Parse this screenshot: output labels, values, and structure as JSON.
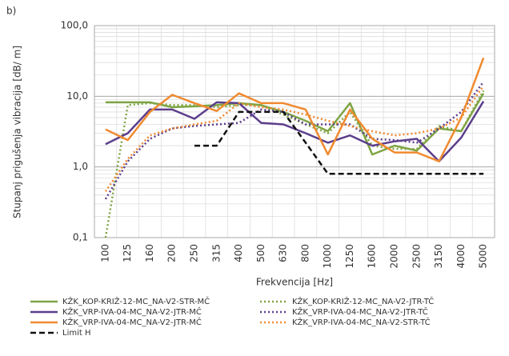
{
  "chart_data": {
    "type": "line",
    "panel_label": "b)",
    "y_label": "Stupanj prigušenja vibracija [dB/ m]",
    "x_label": "Frekvencija [Hz]",
    "categories": [
      "100",
      "125",
      "160",
      "200",
      "250",
      "315",
      "400",
      "500",
      "630",
      "800",
      "1000",
      "1250",
      "1600",
      "2000",
      "2500",
      "3150",
      "4000",
      "5000"
    ],
    "y_scale": "log",
    "ylim": [
      0.1,
      100
    ],
    "yticks": [
      {
        "value": 0.1,
        "label": "0,1"
      },
      {
        "value": 1,
        "label": "1,0"
      },
      {
        "value": 10,
        "label": "10,0"
      },
      {
        "value": 100,
        "label": "100,0"
      }
    ],
    "grid": true,
    "series": [
      {
        "name": "KŽK_KOP-KRIŽ-12-MC_NA-V2-STR-MČ",
        "color": "#7ea443",
        "dash": "solid",
        "values": [
          8.2,
          8.2,
          8.2,
          7,
          7.2,
          7.5,
          8,
          7.5,
          6,
          4.5,
          3.2,
          8,
          1.5,
          2,
          1.7,
          3.5,
          3.2,
          11
        ]
      },
      {
        "name": "KŽK_KOP-KRIŽ-12-MC_NA-V2-JTR-TČ",
        "color": "#7ea443",
        "dash": "dotted",
        "values": [
          0.1,
          7.5,
          8,
          7.5,
          7.5,
          7,
          7.5,
          7.5,
          5.5,
          4,
          3,
          6,
          2,
          1.8,
          1.8,
          3.8,
          3.2,
          12
        ]
      },
      {
        "name": "KŽK_VRP-IVA-04-MC_NA-V2-JTR-MČ",
        "color": "#5c3e8c",
        "dash": "solid",
        "values": [
          2.1,
          3,
          6.5,
          6.5,
          4.8,
          8.2,
          8,
          4.2,
          4,
          3,
          2.2,
          2.8,
          2,
          2.3,
          2.5,
          1.2,
          2.6,
          8.5
        ]
      },
      {
        "name": "KŽK_VRP-IVA-04-MC_NA-V2-JTR-TČ",
        "color": "#5c3e8c",
        "dash": "dotted",
        "values": [
          0.35,
          1.2,
          2.5,
          3.5,
          3.8,
          4,
          4.2,
          6.5,
          6,
          4,
          4,
          4,
          2.5,
          2.4,
          2.2,
          3.5,
          6,
          16
        ]
      },
      {
        "name": "KŽK_VRP-IVA-04-MC_NA-V2-JTR-MČ",
        "color": "#f08a30",
        "dash": "solid",
        "values": [
          3.4,
          2.4,
          6,
          10.5,
          8,
          6.2,
          11,
          8,
          8,
          6.5,
          1.5,
          6.5,
          2.5,
          1.6,
          1.6,
          1.2,
          5,
          35
        ]
      },
      {
        "name": "KŽK_VRP-IVA-04-MC_NA-V2-STR-TČ",
        "color": "#f08a30",
        "dash": "dotted",
        "values": [
          0.45,
          1.3,
          2.8,
          3.5,
          4,
          4.5,
          8,
          7,
          6.5,
          5.5,
          4.5,
          3.8,
          3.2,
          2.8,
          3,
          3.5,
          5,
          14
        ]
      },
      {
        "name": "Limit H",
        "color": "#111111",
        "dash": "dashed",
        "values": [
          null,
          null,
          null,
          null,
          2,
          2,
          6,
          6,
          6,
          2.2,
          0.8,
          0.8,
          0.8,
          0.8,
          0.8,
          0.8,
          0.8,
          0.8
        ]
      }
    ]
  }
}
